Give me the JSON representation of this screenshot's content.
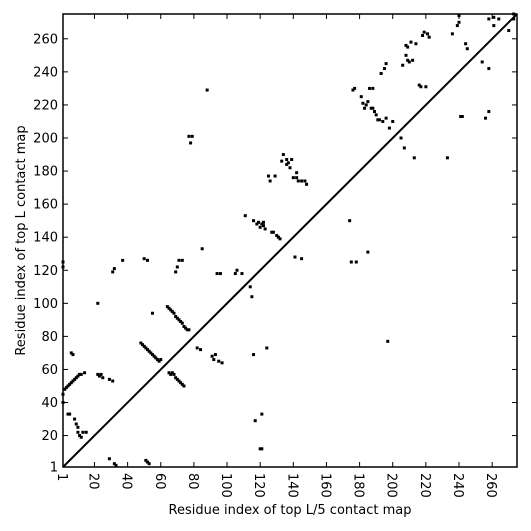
{
  "chart_data": {
    "type": "scatter",
    "title": "",
    "xlabel": "Residue index of top L/5 contact map",
    "ylabel": "Residue index of top L contact map",
    "xlim": [
      1,
      275
    ],
    "ylim": [
      1,
      275
    ],
    "x_ticks": [
      1,
      20,
      40,
      60,
      80,
      100,
      120,
      140,
      160,
      180,
      200,
      220,
      240,
      260
    ],
    "y_ticks": [
      1,
      20,
      40,
      60,
      80,
      100,
      120,
      140,
      160,
      180,
      200,
      220,
      240,
      260
    ],
    "grid": false,
    "diagonal": [
      [
        1,
        1
      ],
      [
        275,
        275
      ]
    ],
    "series": [
      {
        "points": [
          [
            1,
            125
          ],
          [
            1,
            122
          ],
          [
            1,
            45
          ],
          [
            1,
            40
          ],
          [
            2,
            48
          ],
          [
            3,
            49
          ],
          [
            4,
            50
          ],
          [
            5,
            51
          ],
          [
            6,
            52
          ],
          [
            7,
            53
          ],
          [
            8,
            54
          ],
          [
            9,
            55
          ],
          [
            10,
            56
          ],
          [
            11,
            57
          ],
          [
            12,
            57
          ],
          [
            14,
            58
          ],
          [
            4,
            33
          ],
          [
            5,
            33
          ],
          [
            6,
            70
          ],
          [
            7,
            69
          ],
          [
            8,
            30
          ],
          [
            9,
            27
          ],
          [
            10,
            25
          ],
          [
            10,
            22
          ],
          [
            11,
            20
          ],
          [
            12,
            19
          ],
          [
            13,
            22
          ],
          [
            15,
            22
          ],
          [
            22,
            57
          ],
          [
            23,
            56
          ],
          [
            24,
            57
          ],
          [
            25,
            55
          ],
          [
            22,
            100
          ],
          [
            29,
            6
          ],
          [
            29,
            54
          ],
          [
            31,
            53
          ],
          [
            31,
            119
          ],
          [
            32,
            121
          ],
          [
            32,
            3
          ],
          [
            33,
            2
          ],
          [
            37,
            126
          ],
          [
            48,
            76
          ],
          [
            49,
            75
          ],
          [
            50,
            74
          ],
          [
            51,
            73
          ],
          [
            52,
            72
          ],
          [
            53,
            71
          ],
          [
            54,
            70
          ],
          [
            55,
            69
          ],
          [
            56,
            68
          ],
          [
            57,
            67
          ],
          [
            58,
            66
          ],
          [
            59,
            65
          ],
          [
            60,
            66
          ],
          [
            50,
            127
          ],
          [
            52,
            126
          ],
          [
            51,
            5
          ],
          [
            52,
            4
          ],
          [
            53,
            3
          ],
          [
            55,
            94
          ],
          [
            64,
            98
          ],
          [
            65,
            97
          ],
          [
            66,
            96
          ],
          [
            67,
            95
          ],
          [
            68,
            94
          ],
          [
            69,
            92
          ],
          [
            70,
            91
          ],
          [
            71,
            90
          ],
          [
            72,
            89
          ],
          [
            73,
            88
          ],
          [
            74,
            86
          ],
          [
            75,
            85
          ],
          [
            76,
            84
          ],
          [
            77,
            84
          ],
          [
            69,
            119
          ],
          [
            70,
            122
          ],
          [
            71,
            126
          ],
          [
            73,
            126
          ],
          [
            65,
            58
          ],
          [
            66,
            57
          ],
          [
            67,
            58
          ],
          [
            68,
            57
          ],
          [
            69,
            55
          ],
          [
            70,
            54
          ],
          [
            71,
            53
          ],
          [
            72,
            52
          ],
          [
            73,
            51
          ],
          [
            74,
            50
          ],
          [
            77,
            201
          ],
          [
            78,
            197
          ],
          [
            79,
            201
          ],
          [
            82,
            73
          ],
          [
            84,
            72
          ],
          [
            85,
            133
          ],
          [
            88,
            229
          ],
          [
            91,
            68
          ],
          [
            92,
            66
          ],
          [
            93,
            69
          ],
          [
            94,
            118
          ],
          [
            95,
            65
          ],
          [
            96,
            118
          ],
          [
            97,
            64
          ],
          [
            105,
            118
          ],
          [
            106,
            120
          ],
          [
            109,
            118
          ],
          [
            111,
            153
          ],
          [
            114,
            110
          ],
          [
            115,
            104
          ],
          [
            116,
            69
          ],
          [
            116,
            150
          ],
          [
            117,
            29
          ],
          [
            118,
            148
          ],
          [
            119,
            149
          ],
          [
            120,
            146
          ],
          [
            120,
            12
          ],
          [
            121,
            12
          ],
          [
            121,
            148
          ],
          [
            121,
            33
          ],
          [
            122,
            147
          ],
          [
            122,
            149
          ],
          [
            123,
            145
          ],
          [
            124,
            73
          ],
          [
            125,
            177
          ],
          [
            126,
            174
          ],
          [
            127,
            143
          ],
          [
            128,
            143
          ],
          [
            129,
            177
          ],
          [
            130,
            141
          ],
          [
            131,
            140
          ],
          [
            132,
            139
          ],
          [
            133,
            186
          ],
          [
            134,
            190
          ],
          [
            136,
            184
          ],
          [
            136,
            187
          ],
          [
            137,
            185
          ],
          [
            138,
            182
          ],
          [
            139,
            187
          ],
          [
            140,
            176
          ],
          [
            141,
            128
          ],
          [
            142,
            176
          ],
          [
            142,
            179
          ],
          [
            143,
            174
          ],
          [
            145,
            127
          ],
          [
            145,
            174
          ],
          [
            147,
            174
          ],
          [
            148,
            172
          ],
          [
            174,
            150
          ],
          [
            175,
            125
          ],
          [
            176,
            229
          ],
          [
            177,
            230
          ],
          [
            178,
            125
          ],
          [
            181,
            225
          ],
          [
            182,
            221
          ],
          [
            183,
            218
          ],
          [
            184,
            220
          ],
          [
            185,
            222
          ],
          [
            185,
            131
          ],
          [
            186,
            230
          ],
          [
            187,
            218
          ],
          [
            188,
            218
          ],
          [
            188,
            230
          ],
          [
            189,
            216
          ],
          [
            190,
            214
          ],
          [
            191,
            211
          ],
          [
            192,
            211
          ],
          [
            193,
            239
          ],
          [
            194,
            210
          ],
          [
            195,
            242
          ],
          [
            196,
            245
          ],
          [
            196,
            212
          ],
          [
            197,
            77
          ],
          [
            198,
            206
          ],
          [
            200,
            210
          ],
          [
            205,
            200
          ],
          [
            206,
            244
          ],
          [
            207,
            194
          ],
          [
            208,
            250
          ],
          [
            208,
            256
          ],
          [
            209,
            247
          ],
          [
            209,
            255
          ],
          [
            210,
            246
          ],
          [
            211,
            258
          ],
          [
            212,
            247
          ],
          [
            213,
            188
          ],
          [
            214,
            257
          ],
          [
            216,
            232
          ],
          [
            217,
            231
          ],
          [
            218,
            262
          ],
          [
            219,
            264
          ],
          [
            220,
            231
          ],
          [
            221,
            263
          ],
          [
            222,
            261
          ],
          [
            233,
            188
          ],
          [
            236,
            263
          ],
          [
            239,
            268
          ],
          [
            240,
            270
          ],
          [
            240,
            274
          ],
          [
            241,
            213
          ],
          [
            242,
            213
          ],
          [
            244,
            257
          ],
          [
            245,
            254
          ],
          [
            254,
            246
          ],
          [
            256,
            212
          ],
          [
            258,
            216
          ],
          [
            258,
            242
          ],
          [
            258,
            272
          ],
          [
            261,
            273
          ],
          [
            261,
            268
          ],
          [
            264,
            272
          ],
          [
            270,
            265
          ],
          [
            273,
            272
          ],
          [
            273,
            275
          ]
        ]
      }
    ]
  }
}
